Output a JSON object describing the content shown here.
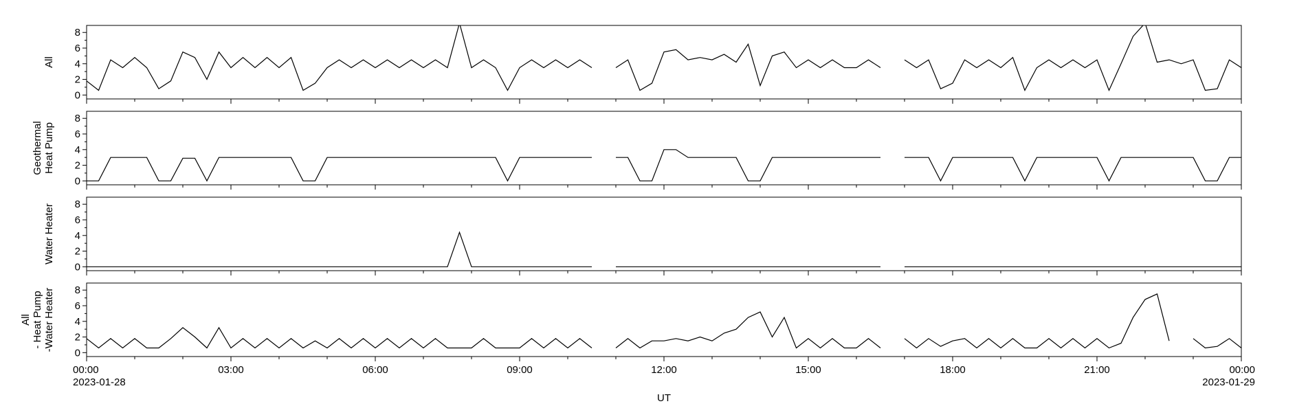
{
  "chart_data": {
    "type": "line",
    "xlabel": "UT",
    "xlim": [
      0,
      24
    ],
    "xticks": [
      {
        "value": 0,
        "label": "00:00",
        "sublabel": "2023-01-28"
      },
      {
        "value": 3,
        "label": "03:00"
      },
      {
        "value": 6,
        "label": "06:00"
      },
      {
        "value": 9,
        "label": "09:00"
      },
      {
        "value": 12,
        "label": "12:00"
      },
      {
        "value": 15,
        "label": "15:00"
      },
      {
        "value": 18,
        "label": "18:00"
      },
      {
        "value": 21,
        "label": "21:00"
      },
      {
        "value": 24,
        "label": "00:00",
        "sublabel": "2023-01-29"
      }
    ],
    "xminor": [
      1,
      2,
      4,
      5,
      7,
      8,
      10,
      11,
      13,
      14,
      16,
      17,
      19,
      20,
      22,
      23
    ],
    "x": [
      0,
      0.25,
      0.5,
      0.75,
      1,
      1.25,
      1.5,
      1.75,
      2,
      2.25,
      2.5,
      2.75,
      3,
      3.25,
      3.5,
      3.75,
      4,
      4.25,
      4.5,
      4.75,
      5,
      5.25,
      5.5,
      5.75,
      6,
      6.25,
      6.5,
      6.75,
      7,
      7.25,
      7.5,
      7.75,
      8,
      8.25,
      8.5,
      8.75,
      9,
      9.25,
      9.5,
      9.75,
      10,
      10.25,
      10.5,
      10.75,
      11,
      11.25,
      11.5,
      11.75,
      12,
      12.25,
      12.5,
      12.75,
      13,
      13.25,
      13.5,
      13.75,
      14,
      14.25,
      14.5,
      14.75,
      15,
      15.25,
      15.5,
      15.75,
      16,
      16.25,
      16.5,
      16.75,
      17,
      17.25,
      17.5,
      17.75,
      18,
      18.25,
      18.5,
      18.75,
      19,
      19.25,
      19.5,
      19.75,
      20,
      20.25,
      20.5,
      20.75,
      21,
      21.25,
      21.5,
      21.75,
      22,
      22.25,
      22.5,
      22.75,
      23,
      23.25,
      23.5,
      23.75,
      24
    ],
    "panels": [
      {
        "ylabel": [
          "All"
        ],
        "ylim": [
          -0.5,
          8.9
        ],
        "yticks": [
          0,
          2,
          4,
          6,
          8
        ],
        "yminor": [
          1,
          3,
          5,
          7
        ],
        "color": "#000000",
        "values": [
          1.8,
          0.6,
          4.5,
          3.5,
          4.8,
          3.5,
          0.8,
          1.8,
          5.5,
          4.8,
          2.0,
          5.5,
          3.5,
          4.8,
          3.5,
          4.8,
          3.5,
          4.8,
          0.6,
          1.5,
          3.5,
          4.5,
          3.5,
          4.5,
          3.5,
          4.5,
          3.5,
          4.5,
          3.5,
          4.5,
          3.5,
          9.2,
          3.5,
          4.5,
          3.5,
          0.6,
          3.5,
          4.5,
          3.5,
          4.5,
          3.5,
          4.5,
          3.5,
          null,
          3.5,
          4.5,
          0.6,
          1.5,
          5.5,
          5.8,
          4.5,
          4.8,
          4.5,
          5.2,
          4.2,
          6.5,
          1.2,
          5.0,
          5.5,
          3.5,
          4.5,
          3.5,
          4.5,
          3.5,
          3.5,
          4.5,
          3.5,
          null,
          4.5,
          3.5,
          4.5,
          0.8,
          1.5,
          4.5,
          3.5,
          4.5,
          3.5,
          4.8,
          0.6,
          3.5,
          4.5,
          3.5,
          4.5,
          3.5,
          4.5,
          0.6,
          4.0,
          7.5,
          9.2,
          4.2,
          4.5,
          4.0,
          4.5,
          0.6,
          0.8,
          4.5,
          3.5
        ]
      },
      {
        "ylabel": [
          "Geothermal",
          "Heat Pump"
        ],
        "ylim": [
          -0.5,
          8.9
        ],
        "yticks": [
          0,
          2,
          4,
          6,
          8
        ],
        "yminor": [
          1,
          3,
          5,
          7
        ],
        "color": "#000000",
        "values": [
          0,
          0,
          3,
          3,
          3,
          3,
          0,
          0,
          2.9,
          2.9,
          0,
          3,
          3,
          3,
          3,
          3,
          3,
          3,
          0,
          0,
          3,
          3,
          3,
          3,
          3,
          3,
          3,
          3,
          3,
          3,
          3,
          3,
          3,
          3,
          3,
          0,
          3,
          3,
          3,
          3,
          3,
          3,
          3,
          null,
          3,
          3,
          0,
          0,
          4,
          4,
          3,
          3,
          3,
          3,
          3,
          0,
          0,
          3,
          3,
          3,
          3,
          3,
          3,
          3,
          3,
          3,
          3,
          null,
          3,
          3,
          3,
          0,
          3,
          3,
          3,
          3,
          3,
          3,
          0,
          3,
          3,
          3,
          3,
          3,
          3,
          0,
          3,
          3,
          3,
          3,
          3,
          3,
          3,
          0,
          0,
          3,
          3
        ]
      },
      {
        "ylabel": [
          "Water Heater"
        ],
        "ylim": [
          -0.5,
          8.9
        ],
        "yticks": [
          0,
          2,
          4,
          6,
          8
        ],
        "yminor": [
          1,
          3,
          5,
          7
        ],
        "color": "#000000",
        "values": [
          0,
          0,
          0,
          0,
          0,
          0,
          0,
          0,
          0,
          0,
          0,
          0,
          0,
          0,
          0,
          0,
          0,
          0,
          0,
          0,
          0,
          0,
          0,
          0,
          0,
          0,
          0,
          0,
          0,
          0,
          0,
          4.4,
          0,
          0,
          0,
          0,
          0,
          0,
          0,
          0,
          0,
          0,
          0,
          null,
          0,
          0,
          0,
          0,
          0,
          0,
          0,
          0,
          0,
          0,
          0,
          0,
          0,
          0,
          0,
          0,
          0,
          0,
          0,
          0,
          0,
          0,
          0,
          null,
          0,
          0,
          0,
          0,
          0,
          0,
          0,
          0,
          0,
          0,
          0,
          0,
          0,
          0,
          0,
          0,
          0,
          0,
          0,
          0,
          0,
          0,
          0,
          0,
          0,
          0,
          0,
          0,
          0
        ]
      },
      {
        "ylabel": [
          "All",
          "- Heat Pump",
          "-Water Heater"
        ],
        "ylim": [
          -0.5,
          8.9
        ],
        "yticks": [
          0,
          2,
          4,
          6,
          8
        ],
        "yminor": [
          1,
          3,
          5,
          7
        ],
        "color": "#000000",
        "values": [
          1.8,
          0.6,
          1.8,
          0.6,
          1.8,
          0.6,
          0.6,
          1.8,
          3.2,
          2.0,
          0.6,
          3.2,
          0.6,
          1.8,
          0.6,
          1.8,
          0.6,
          1.8,
          0.6,
          1.5,
          0.6,
          1.8,
          0.6,
          1.8,
          0.6,
          1.8,
          0.6,
          1.8,
          0.6,
          1.8,
          0.6,
          0.6,
          0.6,
          1.8,
          0.6,
          0.6,
          0.6,
          1.8,
          0.6,
          1.8,
          0.6,
          1.8,
          0.6,
          null,
          0.6,
          1.8,
          0.6,
          1.5,
          1.5,
          1.8,
          1.5,
          2.0,
          1.5,
          2.5,
          3.0,
          4.5,
          5.2,
          2.0,
          4.5,
          0.6,
          1.8,
          0.6,
          1.8,
          0.6,
          0.6,
          1.8,
          0.6,
          null,
          1.8,
          0.6,
          1.8,
          0.8,
          1.5,
          1.8,
          0.6,
          1.8,
          0.6,
          1.8,
          0.6,
          0.6,
          1.8,
          0.6,
          1.8,
          0.6,
          1.8,
          0.6,
          1.2,
          4.5,
          6.8,
          7.5,
          1.5,
          null,
          1.8,
          0.6,
          0.8,
          1.8,
          0.6
        ]
      }
    ]
  }
}
